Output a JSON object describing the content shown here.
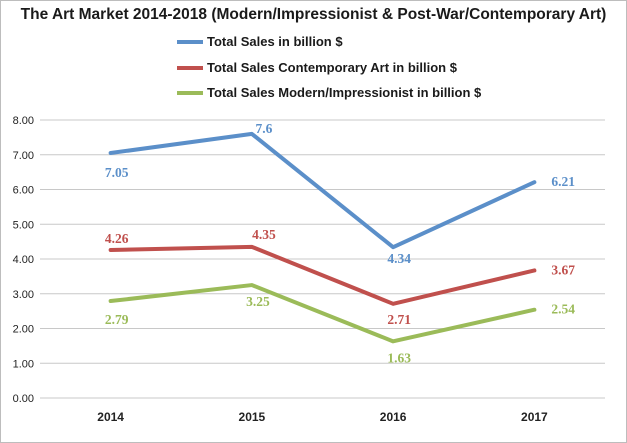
{
  "chart_data": {
    "type": "line",
    "title": "The Art Market 2014-2018 (Modern/Impressionist & Post-War/Contemporary Art)",
    "categories": [
      "2014",
      "2015",
      "2016",
      "2017"
    ],
    "series": [
      {
        "name": "Total Sales in billion $",
        "values": [
          7.05,
          7.6,
          4.34,
          6.21
        ],
        "labels": [
          "7.05",
          "7.6",
          "4.34",
          "6.21"
        ],
        "color": "#5b8fc9"
      },
      {
        "name": "Total Sales Contemporary Art in billion $",
        "values": [
          4.26,
          4.35,
          2.71,
          3.67
        ],
        "labels": [
          "4.26",
          "4.35",
          "2.71",
          "3.67"
        ],
        "color": "#c0504d"
      },
      {
        "name": "Total Sales Modern/Impressionist in billion $",
        "values": [
          2.79,
          3.25,
          1.63,
          2.54
        ],
        "labels": [
          "2.79",
          "3.25",
          "1.63",
          "2.54"
        ],
        "color": "#9bbb59"
      }
    ],
    "ylim": [
      0,
      8
    ],
    "yticks": [
      "0.00",
      "1.00",
      "2.00",
      "3.00",
      "4.00",
      "5.00",
      "6.00",
      "7.00",
      "8.00"
    ],
    "grid": true,
    "legend_position": "top"
  }
}
